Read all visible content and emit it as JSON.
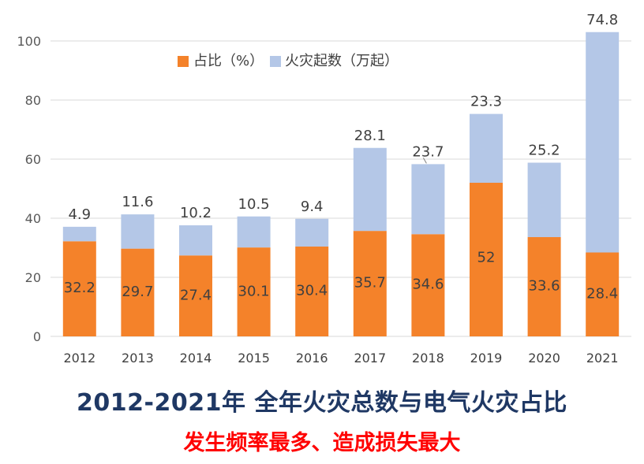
{
  "chart_data": {
    "type": "bar",
    "stacked": true,
    "categories": [
      "2012",
      "2013",
      "2014",
      "2015",
      "2016",
      "2017",
      "2018",
      "2019",
      "2020",
      "2021"
    ],
    "series": [
      {
        "name": "占比（%）",
        "color": "#f4822a",
        "values": [
          32.2,
          29.7,
          27.4,
          30.1,
          30.4,
          35.7,
          34.6,
          52,
          33.6,
          28.4
        ],
        "labels": [
          "32.2",
          "29.7",
          "27.4",
          "30.1",
          "30.4",
          "35.7",
          "34.6",
          "52",
          "33.6",
          "28.4"
        ]
      },
      {
        "name": "火灾起数（万起）",
        "color": "#b4c7e7",
        "values": [
          4.9,
          11.6,
          10.2,
          10.5,
          9.4,
          28.1,
          23.7,
          23.3,
          25.2,
          74.8
        ],
        "labels": [
          "4.9",
          "11.6",
          "10.2",
          "10.5",
          "9.4",
          "28.1",
          "23.7",
          "23.3",
          "25.2",
          "74.8"
        ]
      }
    ],
    "ylim": [
      0,
      100
    ],
    "yticks": [
      "0",
      "20",
      "40",
      "60",
      "80",
      "100"
    ],
    "grid": true,
    "legend": "top-left"
  },
  "caption": {
    "title": "2012-2021年 全年火灾总数与电气火灾占比",
    "subtitle": "发生频率最多、造成损失最大"
  }
}
